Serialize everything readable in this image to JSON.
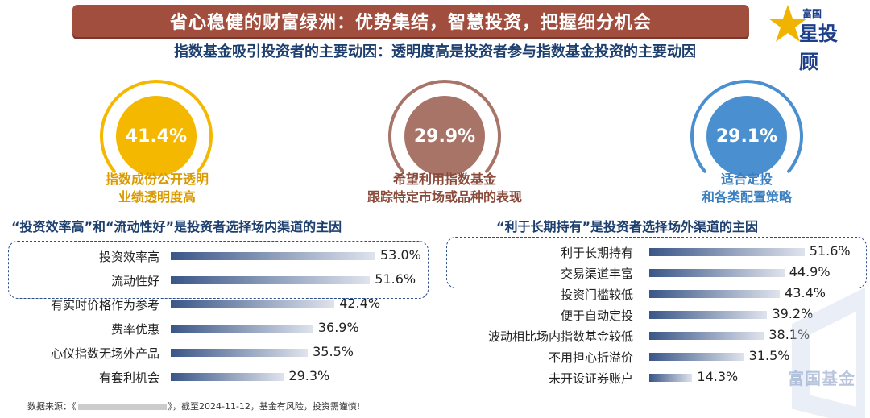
{
  "header": {
    "title": "省心稳健的财富绿洲：优势集结，智慧投资，把握细分机会",
    "logo_top": "富国",
    "logo_main": "星投顾"
  },
  "subtitle": "指数基金吸引投资者的主要动因：透明度高是投资者参与指数基金投资的主要动因",
  "circles": [
    {
      "value": "41.4%",
      "label_line1": "指数成份公开透明",
      "label_line2": "业绩透明度高",
      "color": "#f5b800",
      "text_color": "#d99a00"
    },
    {
      "value": "29.9%",
      "label_line1": "希望利用指数基金",
      "label_line2": "跟踪特定市场或品种的表现",
      "color": "#a87468",
      "text_color": "#8a4a3a"
    },
    {
      "value": "29.1%",
      "label_line1": "适合定投",
      "label_line2": "和各类配置策略",
      "color": "#4a8fd0",
      "text_color": "#3b7fc0"
    }
  ],
  "chart_data": [
    {
      "type": "bar",
      "title": "“投资效率高”和“流动性好”是投资者选择场内渠道的主因",
      "categories": [
        "投资效率高",
        "流动性好",
        "有实时价格作为参考",
        "费率优惠",
        "心仪指数无场外产品",
        "有套利机会"
      ],
      "values": [
        53.0,
        51.6,
        42.4,
        36.9,
        35.5,
        29.3
      ],
      "value_labels": [
        "53.0%",
        "51.6%",
        "42.4%",
        "36.9%",
        "35.5%",
        "29.3%"
      ],
      "highlighted": [
        0,
        1
      ]
    },
    {
      "type": "bar",
      "title": "“利于长期持有”是投资者选择场外渠道的主因",
      "categories": [
        "利于长期持有",
        "交易渠道丰富",
        "投资门槛较低",
        "便于自动定投",
        "波动相比场内指数基金较低",
        "不用担心折溢价",
        "未开设证券账户"
      ],
      "values": [
        51.6,
        44.9,
        43.4,
        39.2,
        38.1,
        31.5,
        14.3
      ],
      "value_labels": [
        "51.6%",
        "44.9%",
        "43.4%",
        "39.2%",
        "38.1%",
        "31.5%",
        "14.3%"
      ],
      "highlighted": [
        0,
        1
      ]
    }
  ],
  "footer": {
    "source_prefix": "数据来源：《",
    "source_suffix": "》，截至2024-11-12，基金有风险，投资需谨慎!"
  },
  "watermark": "富国基金"
}
